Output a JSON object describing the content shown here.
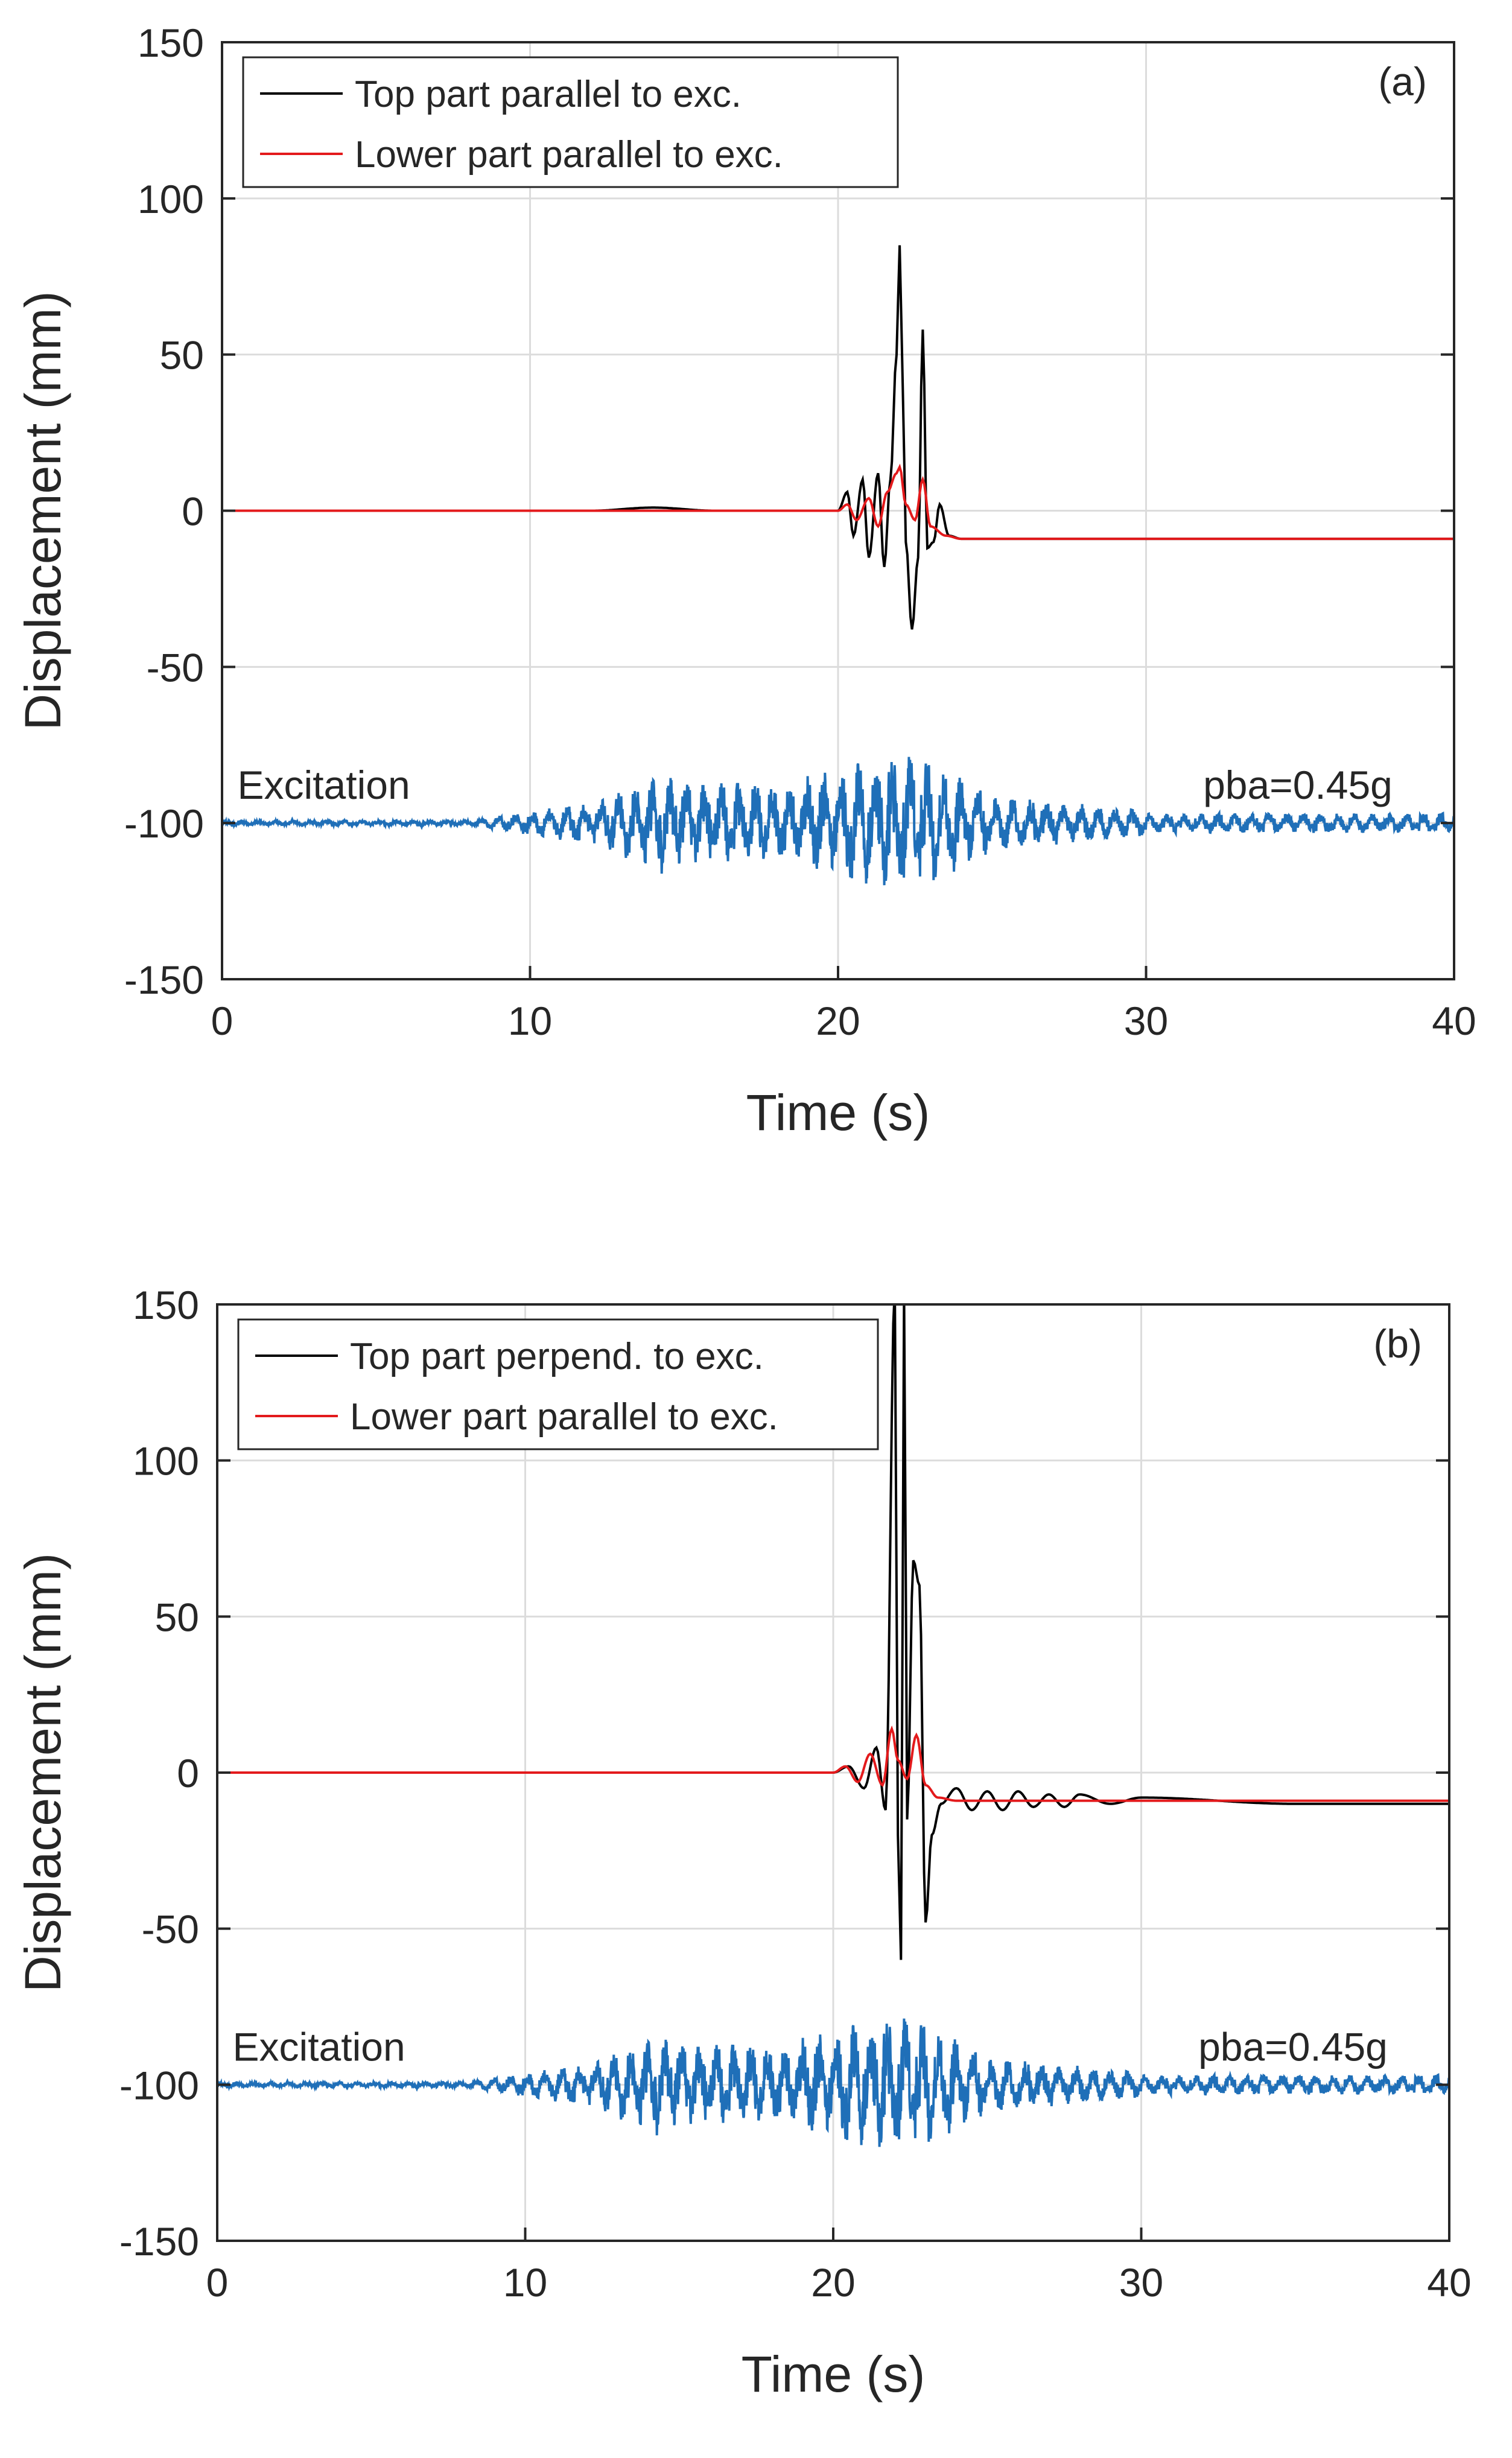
{
  "chart_data": [
    {
      "type": "line",
      "panel_label": "(a)",
      "xlabel": "Time (s)",
      "ylabel": "Displacement (mm)",
      "xlim": [
        0,
        40
      ],
      "ylim": [
        -150,
        150
      ],
      "xticks": [
        "0",
        "10",
        "20",
        "30",
        "40"
      ],
      "yticks": [
        "150",
        "100",
        "50",
        "0",
        "-50",
        "-100",
        "-150"
      ],
      "grid": true,
      "legend_position": "top-left",
      "annotations": {
        "excitation_label": "Excitation",
        "pba_label": "pba=0.45g"
      },
      "series": [
        {
          "name": "Top part parallel to exc.",
          "color": "#000000",
          "description_points": [
            [
              0,
              0
            ],
            [
              12,
              0
            ],
            [
              14,
              1
            ],
            [
              16,
              0
            ],
            [
              20,
              0
            ],
            [
              20.3,
              6
            ],
            [
              20.5,
              -8
            ],
            [
              20.8,
              10
            ],
            [
              21.0,
              -15
            ],
            [
              21.3,
              12
            ],
            [
              21.5,
              -18
            ],
            [
              21.7,
              10
            ],
            [
              21.9,
              50
            ],
            [
              22.0,
              85
            ],
            [
              22.1,
              40
            ],
            [
              22.2,
              -10
            ],
            [
              22.4,
              -38
            ],
            [
              22.6,
              -15
            ],
            [
              22.75,
              58
            ],
            [
              22.9,
              -12
            ],
            [
              23.1,
              -10
            ],
            [
              23.3,
              2
            ],
            [
              23.6,
              -8
            ],
            [
              24,
              -9
            ],
            [
              30,
              -9
            ],
            [
              40,
              -9
            ]
          ]
        },
        {
          "name": "Lower part parallel to exc.",
          "color": "#e31a1c",
          "description_points": [
            [
              0,
              0
            ],
            [
              20,
              0
            ],
            [
              20.3,
              2
            ],
            [
              20.6,
              -3
            ],
            [
              21,
              4
            ],
            [
              21.3,
              -5
            ],
            [
              21.6,
              6
            ],
            [
              21.9,
              12
            ],
            [
              22.0,
              14
            ],
            [
              22.2,
              2
            ],
            [
              22.5,
              -3
            ],
            [
              22.75,
              10
            ],
            [
              23.0,
              -5
            ],
            [
              23.5,
              -8
            ],
            [
              24,
              -9
            ],
            [
              40,
              -9
            ]
          ]
        },
        {
          "name": "Excitation",
          "color": "#1f6fb8",
          "offset": -100,
          "seed": 11
        }
      ]
    },
    {
      "type": "line",
      "panel_label": "(b)",
      "xlabel": "Time (s)",
      "ylabel": "Displacement (mm)",
      "xlim": [
        0,
        40
      ],
      "ylim": [
        -150,
        150
      ],
      "xticks": [
        "0",
        "10",
        "20",
        "30",
        "40"
      ],
      "yticks": [
        "150",
        "100",
        "50",
        "0",
        "-50",
        "-100",
        "-150"
      ],
      "grid": true,
      "legend_position": "top-left",
      "annotations": {
        "excitation_label": "Excitation",
        "pba_label": "pba=0.45g"
      },
      "series": [
        {
          "name": "Top part perpend. to exc.",
          "color": "#000000",
          "description_points": [
            [
              0,
              0
            ],
            [
              20,
              0
            ],
            [
              20.5,
              2
            ],
            [
              21,
              -5
            ],
            [
              21.4,
              8
            ],
            [
              21.7,
              -12
            ],
            [
              22.0,
              155
            ],
            [
              22.1,
              -20
            ],
            [
              22.2,
              -60
            ],
            [
              22.3,
              155
            ],
            [
              22.4,
              -15
            ],
            [
              22.6,
              68
            ],
            [
              22.8,
              60
            ],
            [
              23.0,
              -48
            ],
            [
              23.2,
              -20
            ],
            [
              23.5,
              -10
            ],
            [
              24,
              -5
            ],
            [
              24.5,
              -12
            ],
            [
              25,
              -6
            ],
            [
              25.5,
              -12
            ],
            [
              26,
              -6
            ],
            [
              26.5,
              -11
            ],
            [
              27,
              -7
            ],
            [
              27.5,
              -11
            ],
            [
              28,
              -7
            ],
            [
              29,
              -10
            ],
            [
              30,
              -8
            ],
            [
              35,
              -10
            ],
            [
              40,
              -10
            ]
          ]
        },
        {
          "name": "Lower part parallel to exc.",
          "color": "#e31a1c",
          "description_points": [
            [
              0,
              0
            ],
            [
              20,
              0
            ],
            [
              20.4,
              2
            ],
            [
              20.8,
              -3
            ],
            [
              21.2,
              6
            ],
            [
              21.6,
              -4
            ],
            [
              21.9,
              14
            ],
            [
              22.1,
              4
            ],
            [
              22.4,
              -2
            ],
            [
              22.7,
              12
            ],
            [
              23.0,
              -4
            ],
            [
              23.4,
              -8
            ],
            [
              24,
              -9
            ],
            [
              40,
              -9
            ]
          ]
        },
        {
          "name": "Excitation",
          "color": "#1f6fb8",
          "offset": -100,
          "seed": 11
        }
      ]
    }
  ]
}
